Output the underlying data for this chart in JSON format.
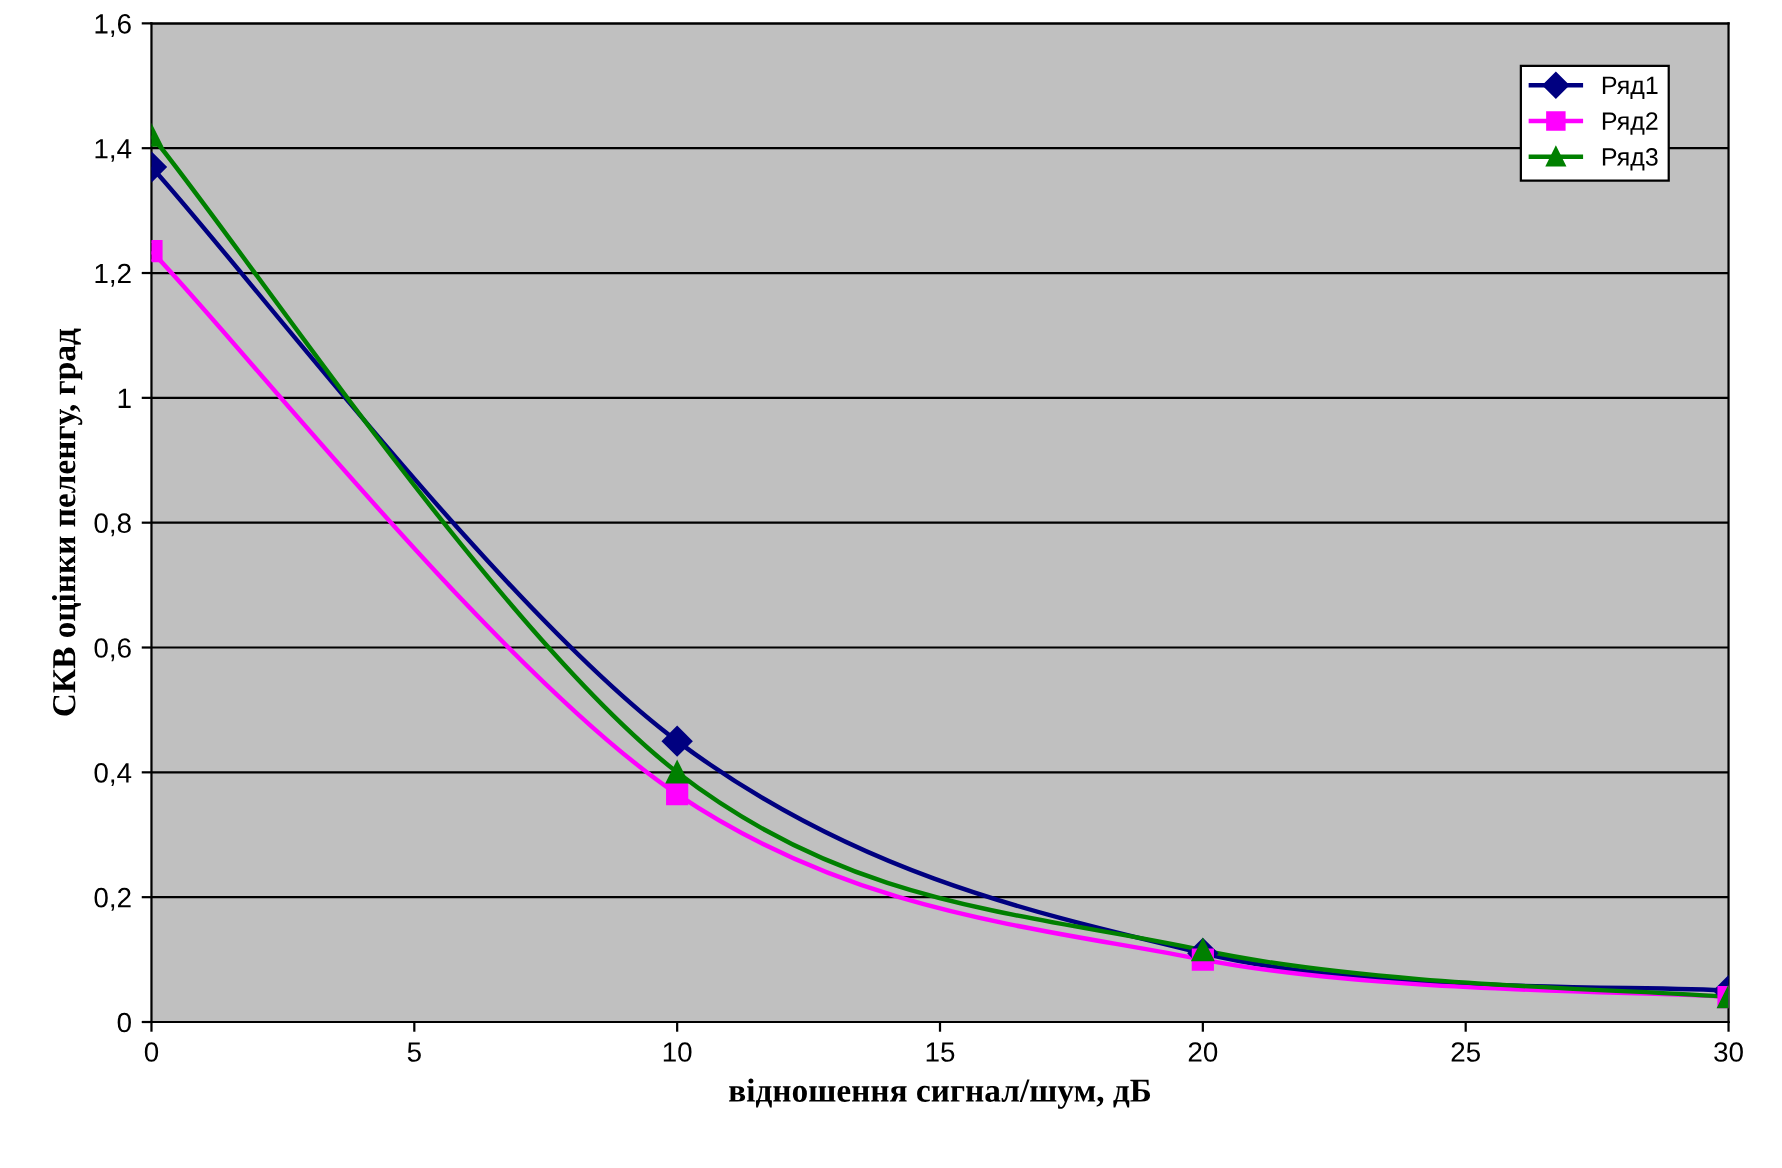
{
  "chart_data": {
    "type": "line",
    "xlabel": "відношення сигнал/шум, дБ",
    "ylabel": "СКВ оцінки пеленгу, град",
    "x": [
      0,
      10,
      20,
      30
    ],
    "series": [
      {
        "name": "Ряд1",
        "color": "#000080",
        "marker": "diamond",
        "values": [
          1.37,
          0.45,
          0.11,
          0.05
        ]
      },
      {
        "name": "Ряд2",
        "color": "#ff00ff",
        "marker": "square",
        "values": [
          1.235,
          0.365,
          0.1,
          0.04
        ]
      },
      {
        "name": "Ряд3",
        "color": "#008000",
        "marker": "triangle",
        "values": [
          1.42,
          0.4,
          0.115,
          0.04
        ]
      }
    ],
    "xlim": [
      0,
      30
    ],
    "xticks": [
      0,
      5,
      10,
      15,
      20,
      25,
      30
    ],
    "ylim": [
      0,
      1.6
    ],
    "yticks": [
      0,
      {
        "value": 0.2,
        "label": "0,2"
      },
      {
        "value": 0.4,
        "label": "0,4"
      },
      {
        "value": 0.6,
        "label": "0,6"
      },
      {
        "value": 0.8,
        "label": "0,8"
      },
      1,
      {
        "value": 1.2,
        "label": "1,2"
      },
      {
        "value": 1.4,
        "label": "1,4"
      },
      {
        "value": 1.6,
        "label": "1,6"
      }
    ],
    "grid": "y",
    "legend": "top right",
    "line_style": "solid"
  }
}
